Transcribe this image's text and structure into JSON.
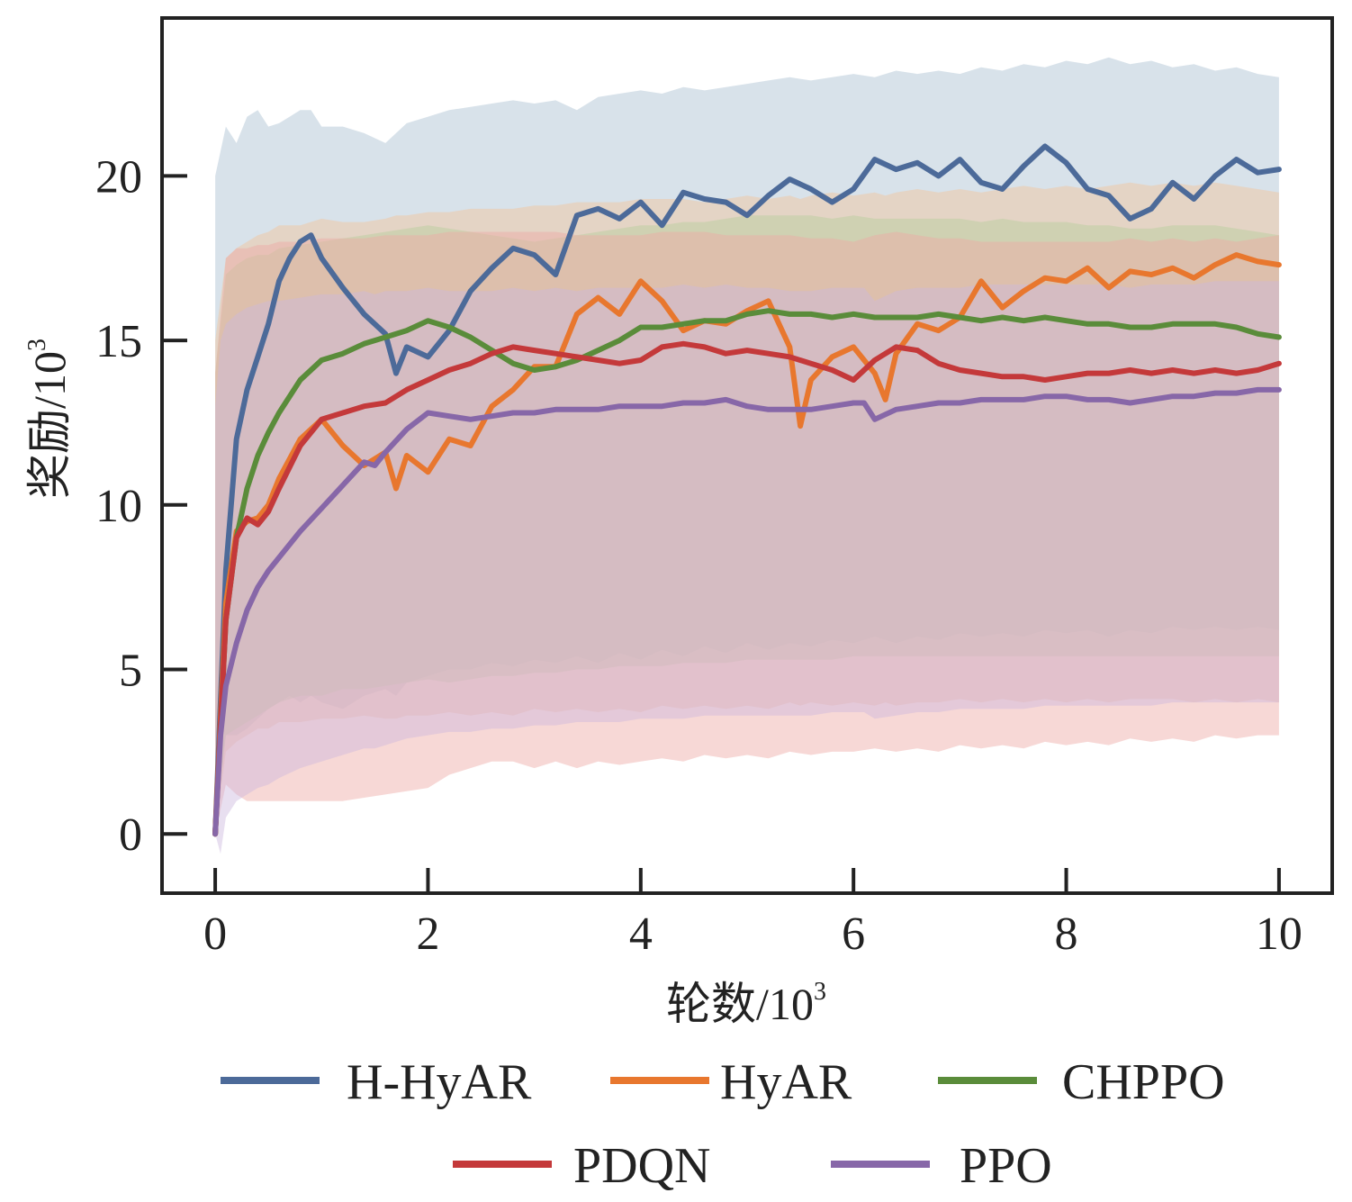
{
  "chart_data": {
    "type": "line",
    "xlabel": "轮数/10",
    "xlabel_sup": "3",
    "ylabel": "奖励/10",
    "ylabel_sup": "3",
    "xlim": [
      -0.5,
      10.5
    ],
    "ylim": [
      -1.8,
      24.8
    ],
    "xticks": [
      0,
      2,
      4,
      6,
      8,
      10
    ],
    "yticks": [
      0,
      5,
      10,
      15,
      20
    ],
    "grid": false,
    "legend_position": "bottom-center",
    "series": [
      {
        "name": "H-HyAR",
        "color": "#4c6a99",
        "band_color": "#a9bfd0",
        "x": [
          0,
          0.1,
          0.2,
          0.3,
          0.4,
          0.5,
          0.6,
          0.7,
          0.8,
          0.9,
          1.0,
          1.2,
          1.4,
          1.6,
          1.7,
          1.8,
          2.0,
          2.2,
          2.4,
          2.6,
          2.8,
          3.0,
          3.2,
          3.4,
          3.6,
          3.8,
          4.0,
          4.2,
          4.4,
          4.6,
          4.8,
          5.0,
          5.2,
          5.4,
          5.6,
          5.8,
          6.0,
          6.2,
          6.4,
          6.6,
          6.8,
          7.0,
          7.2,
          7.4,
          7.6,
          7.8,
          8.0,
          8.2,
          8.4,
          8.6,
          8.8,
          9.0,
          9.2,
          9.4,
          9.6,
          9.8,
          10.0
        ],
        "y": [
          0,
          8.0,
          12.0,
          13.5,
          14.5,
          15.5,
          16.8,
          17.5,
          18.0,
          18.2,
          17.5,
          16.6,
          15.8,
          15.2,
          14.0,
          14.8,
          14.5,
          15.3,
          16.5,
          17.2,
          17.8,
          17.6,
          17.0,
          18.8,
          19.0,
          18.7,
          19.2,
          18.5,
          19.5,
          19.3,
          19.2,
          18.8,
          19.4,
          19.9,
          19.6,
          19.2,
          19.6,
          20.5,
          20.2,
          20.4,
          20.0,
          20.5,
          19.8,
          19.6,
          20.3,
          20.9,
          20.4,
          19.6,
          19.4,
          18.7,
          19.0,
          19.8,
          19.3,
          20.0,
          20.5,
          20.1,
          20.2
        ],
        "band_hi": [
          20.0,
          21.5,
          21.0,
          21.8,
          22.0,
          21.5,
          21.6,
          21.8,
          22.0,
          22.0,
          21.5,
          21.5,
          21.3,
          21.0,
          21.3,
          21.6,
          21.8,
          22.0,
          22.1,
          22.2,
          22.3,
          22.2,
          22.3,
          22.0,
          22.4,
          22.5,
          22.6,
          22.5,
          22.7,
          22.6,
          22.7,
          22.8,
          22.9,
          23.0,
          22.9,
          23.0,
          23.1,
          23.0,
          23.2,
          23.1,
          23.2,
          23.1,
          23.3,
          23.2,
          23.4,
          23.3,
          23.5,
          23.4,
          23.6,
          23.4,
          23.5,
          23.3,
          23.4,
          23.2,
          23.3,
          23.1,
          23.0
        ],
        "band_lo": [
          0,
          3.0,
          3.0,
          3.2,
          3.5,
          3.8,
          4.0,
          4.2,
          4.0,
          4.2,
          4.0,
          3.8,
          4.2,
          4.4,
          4.2,
          4.6,
          4.8,
          5.0,
          5.0,
          5.2,
          5.1,
          5.3,
          5.2,
          5.4,
          5.2,
          5.5,
          5.3,
          5.6,
          5.4,
          5.7,
          5.5,
          5.8,
          5.6,
          5.8,
          5.7,
          5.9,
          5.8,
          6.0,
          5.8,
          6.0,
          5.9,
          6.1,
          6.0,
          6.1,
          6.0,
          6.2,
          6.1,
          6.2,
          6.0,
          6.2,
          6.1,
          6.3,
          6.2,
          6.3,
          6.2,
          6.3,
          6.2
        ]
      },
      {
        "name": "HyAR",
        "color": "#e8772e",
        "band_color": "#f5c49a",
        "x": [
          0,
          0.1,
          0.2,
          0.3,
          0.4,
          0.5,
          0.6,
          0.8,
          1.0,
          1.2,
          1.4,
          1.6,
          1.7,
          1.8,
          2.0,
          2.2,
          2.4,
          2.6,
          2.8,
          3.0,
          3.2,
          3.4,
          3.6,
          3.8,
          4.0,
          4.2,
          4.4,
          4.6,
          4.8,
          5.0,
          5.2,
          5.4,
          5.5,
          5.6,
          5.8,
          6.0,
          6.2,
          6.3,
          6.4,
          6.6,
          6.8,
          7.0,
          7.2,
          7.4,
          7.6,
          7.8,
          8.0,
          8.2,
          8.4,
          8.6,
          8.8,
          9.0,
          9.2,
          9.4,
          9.6,
          9.8,
          10.0
        ],
        "y": [
          0,
          7.0,
          9.2,
          9.5,
          9.6,
          10.0,
          10.8,
          12.0,
          12.6,
          11.8,
          11.2,
          11.6,
          10.5,
          11.5,
          11.0,
          12.0,
          11.8,
          13.0,
          13.5,
          14.2,
          14.2,
          15.8,
          16.3,
          15.8,
          16.8,
          16.2,
          15.3,
          15.6,
          15.5,
          15.9,
          16.2,
          14.8,
          12.4,
          13.8,
          14.5,
          14.8,
          14.0,
          13.2,
          14.6,
          15.5,
          15.3,
          15.7,
          16.8,
          16.0,
          16.5,
          16.9,
          16.8,
          17.2,
          16.6,
          17.1,
          17.0,
          17.2,
          16.9,
          17.3,
          17.6,
          17.4,
          17.3
        ],
        "band_hi": [
          15.0,
          17.5,
          17.8,
          18.0,
          18.2,
          18.3,
          18.5,
          18.5,
          18.7,
          18.6,
          18.6,
          18.7,
          18.8,
          18.8,
          18.9,
          18.9,
          19.0,
          19.0,
          19.0,
          19.1,
          19.1,
          19.2,
          19.2,
          19.2,
          19.3,
          19.3,
          19.3,
          19.2,
          19.3,
          19.4,
          19.3,
          19.4,
          19.3,
          19.4,
          19.5,
          19.4,
          19.5,
          19.4,
          19.5,
          19.6,
          19.5,
          19.6,
          19.5,
          19.6,
          19.7,
          19.6,
          19.7,
          19.6,
          19.7,
          19.8,
          19.7,
          19.8,
          19.7,
          19.8,
          19.7,
          19.6,
          19.5
        ],
        "band_lo": [
          0,
          2.5,
          2.8,
          3.0,
          3.2,
          3.2,
          3.4,
          3.4,
          3.5,
          3.5,
          3.6,
          3.5,
          3.5,
          3.6,
          3.6,
          3.7,
          3.6,
          3.7,
          3.6,
          3.8,
          3.7,
          3.8,
          3.7,
          3.8,
          3.7,
          3.9,
          3.8,
          3.9,
          3.8,
          3.9,
          3.8,
          4.0,
          3.9,
          4.0,
          3.9,
          4.0,
          3.9,
          4.0,
          3.9,
          4.0,
          4.0,
          4.1,
          4.0,
          4.1,
          4.0,
          4.1,
          4.0,
          4.1,
          4.0,
          4.1,
          4.1,
          4.1,
          4.0,
          4.1,
          4.0,
          4.1,
          4.0
        ]
      },
      {
        "name": "CHPPO",
        "color": "#5a8c3a",
        "band_color": "#b5cf9c",
        "x": [
          0,
          0.1,
          0.2,
          0.3,
          0.4,
          0.5,
          0.6,
          0.8,
          1.0,
          1.2,
          1.4,
          1.6,
          1.8,
          2.0,
          2.2,
          2.4,
          2.6,
          2.8,
          3.0,
          3.2,
          3.4,
          3.6,
          3.8,
          4.0,
          4.2,
          4.4,
          4.6,
          4.8,
          5.0,
          5.2,
          5.4,
          5.6,
          5.8,
          6.0,
          6.2,
          6.4,
          6.6,
          6.8,
          7.0,
          7.2,
          7.4,
          7.6,
          7.8,
          8.0,
          8.2,
          8.4,
          8.6,
          8.8,
          9.0,
          9.2,
          9.4,
          9.6,
          9.8,
          10.0
        ],
        "y": [
          0,
          6.5,
          9.0,
          10.5,
          11.5,
          12.2,
          12.8,
          13.8,
          14.4,
          14.6,
          14.9,
          15.1,
          15.3,
          15.6,
          15.4,
          15.1,
          14.7,
          14.3,
          14.1,
          14.2,
          14.4,
          14.7,
          15.0,
          15.4,
          15.4,
          15.5,
          15.6,
          15.6,
          15.8,
          15.9,
          15.8,
          15.8,
          15.7,
          15.8,
          15.7,
          15.7,
          15.7,
          15.8,
          15.7,
          15.6,
          15.7,
          15.6,
          15.7,
          15.6,
          15.5,
          15.5,
          15.4,
          15.4,
          15.5,
          15.5,
          15.5,
          15.4,
          15.2,
          15.1
        ],
        "band_hi": [
          14.0,
          17.0,
          17.3,
          17.5,
          17.6,
          17.6,
          17.8,
          17.9,
          18.0,
          18.1,
          18.2,
          18.3,
          18.4,
          18.5,
          18.4,
          18.3,
          18.2,
          18.1,
          18.0,
          18.1,
          18.2,
          18.3,
          18.4,
          18.5,
          18.5,
          18.6,
          18.6,
          18.7,
          18.8,
          18.8,
          18.8,
          18.8,
          18.7,
          18.8,
          18.7,
          18.7,
          18.7,
          18.7,
          18.7,
          18.6,
          18.7,
          18.6,
          18.6,
          18.6,
          18.5,
          18.5,
          18.4,
          18.4,
          18.5,
          18.5,
          18.5,
          18.4,
          18.3,
          18.2
        ],
        "band_lo": [
          0,
          3.0,
          3.2,
          3.4,
          3.6,
          3.8,
          4.0,
          4.2,
          4.2,
          4.4,
          4.4,
          4.5,
          4.6,
          4.7,
          4.6,
          4.7,
          4.8,
          4.8,
          4.9,
          4.9,
          5.0,
          5.0,
          5.1,
          5.1,
          5.1,
          5.2,
          5.2,
          5.2,
          5.3,
          5.3,
          5.3,
          5.3,
          5.3,
          5.4,
          5.4,
          5.4,
          5.4,
          5.4,
          5.4,
          5.4,
          5.4,
          5.4,
          5.4,
          5.4,
          5.4,
          5.4,
          5.4,
          5.4,
          5.4,
          5.4,
          5.4,
          5.4,
          5.4,
          5.4
        ]
      },
      {
        "name": "PDQN",
        "color": "#c4393a",
        "band_color": "#eea8a3",
        "x": [
          0,
          0.1,
          0.2,
          0.3,
          0.4,
          0.5,
          0.6,
          0.8,
          1.0,
          1.2,
          1.4,
          1.6,
          1.8,
          2.0,
          2.2,
          2.4,
          2.6,
          2.8,
          3.0,
          3.2,
          3.4,
          3.6,
          3.8,
          4.0,
          4.2,
          4.4,
          4.6,
          4.8,
          5.0,
          5.2,
          5.4,
          5.6,
          5.8,
          6.0,
          6.2,
          6.4,
          6.6,
          6.8,
          7.0,
          7.2,
          7.4,
          7.6,
          7.8,
          8.0,
          8.2,
          8.4,
          8.6,
          8.8,
          9.0,
          9.2,
          9.4,
          9.6,
          9.8,
          10.0
        ],
        "y": [
          0,
          6.5,
          9.0,
          9.6,
          9.4,
          9.8,
          10.5,
          11.8,
          12.6,
          12.8,
          13.0,
          13.1,
          13.5,
          13.8,
          14.1,
          14.3,
          14.6,
          14.8,
          14.7,
          14.6,
          14.5,
          14.4,
          14.3,
          14.4,
          14.8,
          14.9,
          14.8,
          14.6,
          14.7,
          14.6,
          14.5,
          14.3,
          14.1,
          13.8,
          14.4,
          14.8,
          14.7,
          14.3,
          14.1,
          14.0,
          13.9,
          13.9,
          13.8,
          13.9,
          14.0,
          14.0,
          14.1,
          14.0,
          14.1,
          14.0,
          14.1,
          14.0,
          14.1,
          14.3
        ],
        "band_hi": [
          14.0,
          17.5,
          17.8,
          17.8,
          17.9,
          17.9,
          18.0,
          18.0,
          18.1,
          18.1,
          18.1,
          18.2,
          18.2,
          18.2,
          18.3,
          18.3,
          18.3,
          18.3,
          18.3,
          18.3,
          18.2,
          18.2,
          18.2,
          18.2,
          18.3,
          18.3,
          18.3,
          18.2,
          18.2,
          18.2,
          18.2,
          18.1,
          18.1,
          18.0,
          18.2,
          18.3,
          18.2,
          18.1,
          18.1,
          18.0,
          18.0,
          18.0,
          18.0,
          18.0,
          18.0,
          18.0,
          18.1,
          18.0,
          18.1,
          18.0,
          18.1,
          18.0,
          18.1,
          18.2
        ],
        "band_lo": [
          0,
          1.5,
          1.2,
          1.0,
          1.0,
          1.0,
          1.0,
          1.0,
          1.0,
          1.0,
          1.1,
          1.2,
          1.3,
          1.4,
          1.8,
          2.0,
          2.2,
          2.2,
          2.0,
          2.2,
          2.0,
          2.2,
          2.1,
          2.2,
          2.3,
          2.2,
          2.4,
          2.3,
          2.4,
          2.3,
          2.5,
          2.4,
          2.5,
          2.5,
          2.6,
          2.5,
          2.6,
          2.5,
          2.7,
          2.6,
          2.7,
          2.6,
          2.8,
          2.7,
          2.8,
          2.7,
          2.9,
          2.8,
          2.9,
          2.8,
          3.0,
          2.9,
          3.0,
          3.0
        ]
      },
      {
        "name": "PPO",
        "color": "#8767a8",
        "band_color": "#cbb8de",
        "x": [
          0,
          0.05,
          0.1,
          0.2,
          0.3,
          0.4,
          0.5,
          0.6,
          0.8,
          1.0,
          1.2,
          1.4,
          1.5,
          1.6,
          1.8,
          2.0,
          2.2,
          2.4,
          2.6,
          2.8,
          3.0,
          3.2,
          3.4,
          3.6,
          3.8,
          4.0,
          4.2,
          4.4,
          4.6,
          4.8,
          5.0,
          5.2,
          5.4,
          5.6,
          5.8,
          6.0,
          6.1,
          6.2,
          6.4,
          6.6,
          6.8,
          7.0,
          7.2,
          7.4,
          7.6,
          7.8,
          8.0,
          8.2,
          8.4,
          8.6,
          8.8,
          9.0,
          9.2,
          9.4,
          9.6,
          9.8,
          10.0
        ],
        "y": [
          0,
          3.0,
          4.5,
          5.8,
          6.8,
          7.5,
          8.0,
          8.4,
          9.2,
          9.9,
          10.6,
          11.3,
          11.2,
          11.6,
          12.3,
          12.8,
          12.7,
          12.6,
          12.7,
          12.8,
          12.8,
          12.9,
          12.9,
          12.9,
          13.0,
          13.0,
          13.0,
          13.1,
          13.1,
          13.2,
          13.0,
          12.9,
          12.9,
          12.9,
          13.0,
          13.1,
          13.1,
          12.6,
          12.9,
          13.0,
          13.1,
          13.1,
          13.2,
          13.2,
          13.2,
          13.3,
          13.3,
          13.2,
          13.2,
          13.1,
          13.2,
          13.3,
          13.3,
          13.4,
          13.4,
          13.5,
          13.5
        ],
        "band_hi": [
          13.0,
          15.0,
          15.5,
          15.8,
          16.0,
          16.1,
          16.2,
          16.2,
          16.3,
          16.4,
          16.4,
          16.5,
          16.4,
          16.5,
          16.5,
          16.6,
          16.5,
          16.5,
          16.5,
          16.6,
          16.5,
          16.6,
          16.5,
          16.6,
          16.6,
          16.6,
          16.6,
          16.7,
          16.6,
          16.7,
          16.6,
          16.6,
          16.5,
          16.5,
          16.6,
          16.6,
          16.6,
          16.2,
          16.5,
          16.6,
          16.6,
          16.6,
          16.7,
          16.7,
          16.7,
          16.7,
          16.7,
          16.7,
          16.7,
          16.6,
          16.7,
          16.7,
          16.7,
          16.8,
          16.8,
          16.8,
          16.8
        ],
        "band_lo": [
          0,
          -0.6,
          0.5,
          1.0,
          1.2,
          1.4,
          1.5,
          1.7,
          2.0,
          2.2,
          2.4,
          2.6,
          2.6,
          2.7,
          2.9,
          3.0,
          3.1,
          3.1,
          3.2,
          3.2,
          3.3,
          3.3,
          3.4,
          3.4,
          3.4,
          3.5,
          3.5,
          3.5,
          3.6,
          3.6,
          3.6,
          3.6,
          3.6,
          3.6,
          3.7,
          3.7,
          3.7,
          3.5,
          3.6,
          3.7,
          3.7,
          3.8,
          3.8,
          3.8,
          3.8,
          3.9,
          3.9,
          3.9,
          3.9,
          3.9,
          3.9,
          4.0,
          4.0,
          4.0,
          4.0,
          4.0,
          4.0
        ]
      }
    ]
  }
}
